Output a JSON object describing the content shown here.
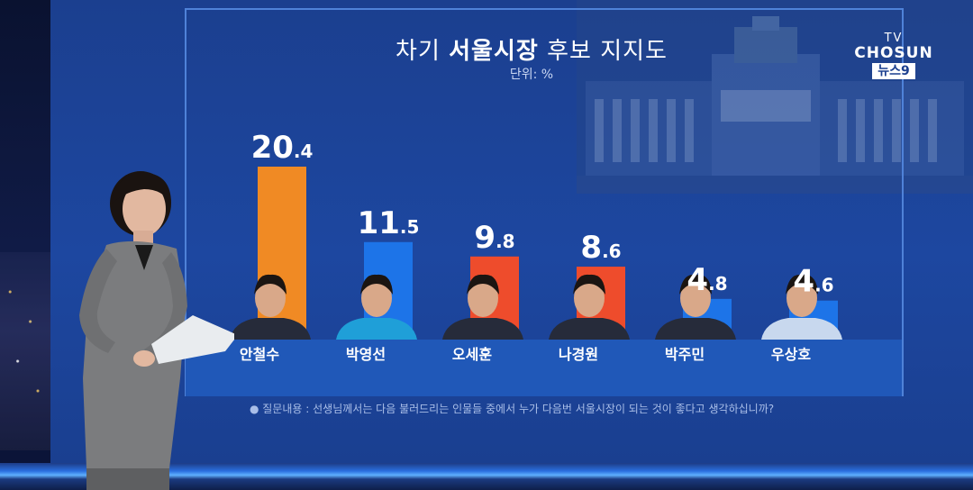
{
  "broadcaster": {
    "logo_top": "TV",
    "logo_main": "CHOSUN",
    "logo_sub": "뉴스9"
  },
  "chart_data": {
    "type": "bar",
    "title_parts": [
      "차기 ",
      "서울시장",
      " 후보 지지도"
    ],
    "unit": "단위: %",
    "categories": [
      "안철수",
      "박영선",
      "오세훈",
      "나경원",
      "박주민",
      "우상호"
    ],
    "values": [
      20.4,
      11.5,
      9.8,
      8.6,
      4.8,
      4.6
    ],
    "value_labels": [
      [
        "20",
        ".4"
      ],
      [
        "11",
        ".5"
      ],
      [
        "9",
        ".8"
      ],
      [
        "8",
        ".6"
      ],
      [
        "4",
        ".8"
      ],
      [
        "4",
        ".6"
      ]
    ],
    "bar_colors": [
      "#f08a24",
      "#1d74e8",
      "#ee4c2c",
      "#ee4c2c",
      "#1d74e8",
      "#1d74e8"
    ],
    "ylim": [
      0,
      20.4
    ],
    "grid": false,
    "legend": "none",
    "note": "● 질문내용 : 선생님께서는 다음 불러드리는 인물들 중에서 누가 다음번 서울시장이 되는 것이 좋다고 생각하십니까?"
  }
}
